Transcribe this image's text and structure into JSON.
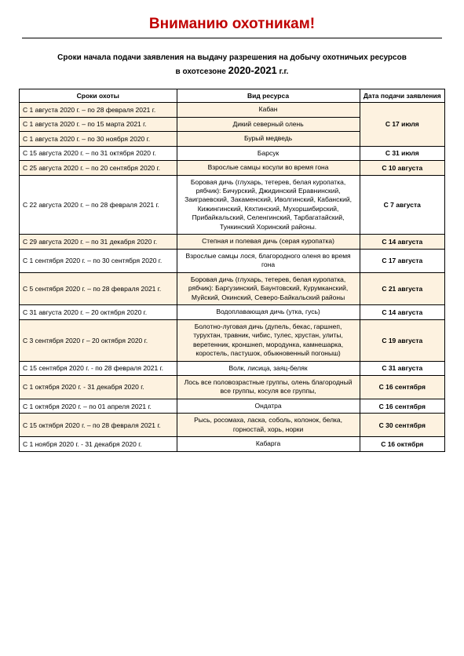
{
  "title": "Вниманию охотникам!",
  "title_color": "#c00000",
  "subtitle_line1": "Сроки начала подачи заявления на выдачу разрешения на добычу охотничьих ресурсов",
  "subtitle_line2_prefix": "в охотсезоне ",
  "subtitle_season": "2020-2021",
  "subtitle_line2_suffix": " г.г.",
  "headers": {
    "period": "Сроки охоты",
    "resource": "Вид ресурса",
    "date": "Дата подачи заявления"
  },
  "rows": [
    {
      "shade": true,
      "period": "С 1 августа 2020 г. – по 28 февраля 2021 г.",
      "resource": "Кабан",
      "date": "С 17 июля",
      "rowspan": 3
    },
    {
      "shade": true,
      "period": "С 1 августа 2020 г. – по 15 марта 2021 г.",
      "resource": "Дикий северный олень"
    },
    {
      "shade": true,
      "period": "С 1 августа 2020 г. – по 30 ноября 2020 г.",
      "resource": "Бурый медведь"
    },
    {
      "shade": false,
      "period": "С 15 августа 2020 г.  – по 31 октября 2020 г.",
      "resource": "Барсук",
      "date": "С 31 июля"
    },
    {
      "shade": true,
      "period": "С 25 августа 2020 г.  – по 20 сентября 2020 г.",
      "resource": "Взрослые самцы косули во время гона",
      "date": "С 10 августа"
    },
    {
      "shade": false,
      "period": "С 22 августа 2020 г.  – по 28 февраля 2021 г.",
      "resource": "Боровая дичь (глухарь, тетерев, белая куропатка, рябчик): Бичурский, Джидинский Еравнинский, Заиграевский, Закаменский, Иволгинский, Кабанский, Кижингинский, Кяхтинский, Мухоршибирский, Прибайкальский, Селенгинский, Тарбагатайский, Тункинский Хоринский районы.",
      "date": "С 7 августа"
    },
    {
      "shade": true,
      "period": "С 29 августа 2020 г.  – по 31 декабря 2020 г.",
      "resource": "Степная и полевая дичь (серая куропатка)",
      "date": "С 14 августа"
    },
    {
      "shade": false,
      "period": "С 1 сентября 2020 г.  – по 30 сентября 2020 г.",
      "resource": "Взрослые самцы лося, благородного оленя во время гона",
      "date": "С 17 августа"
    },
    {
      "shade": true,
      "period": "С 5 сентября 2020 г.  – по 28 февраля 2021 г.",
      "resource": "Боровая дичь (глухарь, тетерев, белая куропатка, рябчик): Баргузинский, Баунтовский, Курумканский, Муйский, Окинский, Северо-Байкальский районы",
      "date": "С 21 августа"
    },
    {
      "shade": false,
      "period": "С 31 августа 2020 г.  – 20 октября 2020 г.",
      "resource": "Водоплавающая дичь (утка, гусь)",
      "date": "С 14 августа"
    },
    {
      "shade": true,
      "period": "С 3 сентября 2020 г – 20 октября 2020 г.",
      "resource": "Болотно-луговая дичь (дупель, бекас, гаршнеп, турухтан, травник, чибис, тулес, хрустан, улиты, веретенник, кроншнеп, мородунка, камнешарка, коростель, пастушок, обыкновенный погоныш)",
      "date": "С 19 августа"
    },
    {
      "shade": false,
      "period": "С 15 сентября 2020 г.  -  по 28 февраля 2021 г.",
      "resource": "Волк, лисица, заяц-беляк",
      "date": "С 31 августа"
    },
    {
      "shade": true,
      "period": "С 1 октября 2020 г. -  31 декабря 2020 г.",
      "resource": "Лось все половозрастные группы, олень благородный все группы, косуля все группы,",
      "date": "С 16 сентября"
    },
    {
      "shade": false,
      "period": "С 1 октября 2020 г.  – по 01 апреля 2021 г.",
      "resource": "Ондатра",
      "date": "С 16 сентября"
    },
    {
      "shade": true,
      "period": "С 15 октября 2020 г. – по 28 февраля 2021 г.",
      "resource": "Рысь, росомаха, ласка, соболь, колонок, белка, горностай, хорь, норки",
      "date": "С 30 сентября"
    },
    {
      "shade": false,
      "period": "С 1 ноября 2020 г. -  31 декабря 2020 г.",
      "resource": "Кабарга",
      "date": "С 16 октября"
    }
  ]
}
